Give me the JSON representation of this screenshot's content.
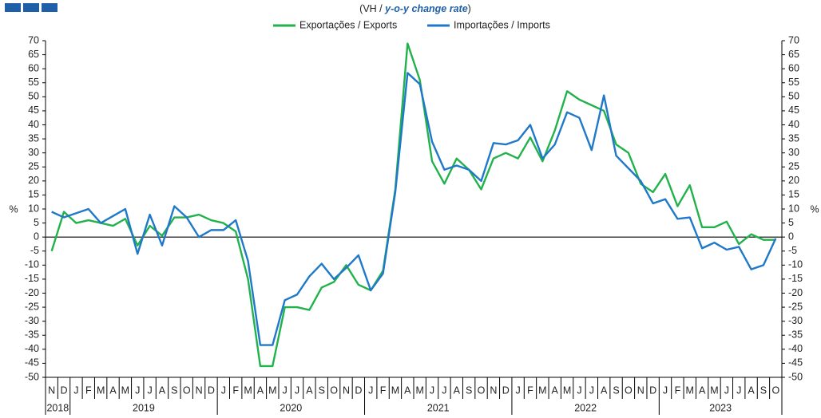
{
  "chart_data": {
    "type": "line",
    "title_prefix": "(VH /",
    "title": "y-o-y change rate",
    "title_suffix": ")",
    "ylabel": "%",
    "y2label": "%",
    "categories": [
      "N",
      "D",
      "J",
      "F",
      "M",
      "A",
      "M",
      "J",
      "J",
      "A",
      "S",
      "O",
      "N",
      "D",
      "J",
      "F",
      "M",
      "A",
      "M",
      "J",
      "J",
      "A",
      "S",
      "O",
      "N",
      "D",
      "J",
      "F",
      "M",
      "A",
      "M",
      "J",
      "J",
      "A",
      "S",
      "O",
      "N",
      "D",
      "J",
      "F",
      "M",
      "A",
      "M",
      "J",
      "J",
      "A",
      "S",
      "O",
      "N",
      "D",
      "J",
      "F",
      "M",
      "A",
      "M",
      "J",
      "J",
      "A",
      "S",
      "O"
    ],
    "years": [
      "2018",
      "2019",
      "2020",
      "2021",
      "2022",
      "2023"
    ],
    "series": [
      {
        "name": "Exportações / Exports",
        "color": "#22b24c",
        "values": [
          -5,
          9,
          5,
          6,
          5,
          4,
          6.5,
          -3,
          4,
          0.5,
          7,
          7,
          8,
          6,
          5,
          2,
          -15,
          -46,
          -46,
          -25,
          -25,
          -26,
          -18,
          -16,
          -10,
          -17,
          -19,
          -12,
          17,
          69,
          56,
          27,
          19,
          28,
          24,
          17,
          28,
          30,
          28,
          35.5,
          27,
          38,
          52,
          49,
          47,
          45,
          33,
          30,
          19,
          16,
          22.5,
          11,
          18.5,
          3.5,
          3.5,
          5.5,
          -2.5,
          1,
          -1,
          -1
        ]
      },
      {
        "name": "Importações / Imports",
        "color": "#1f78c8",
        "values": [
          9,
          7,
          8.5,
          10,
          5,
          7.5,
          10,
          -6,
          8,
          -3,
          11,
          7,
          0,
          2.5,
          2.5,
          6,
          -8.5,
          -38.5,
          -38.5,
          -22.5,
          -20.5,
          -14,
          -9.5,
          -15,
          -11,
          -6.5,
          -19,
          -13,
          16,
          58.5,
          54.5,
          34,
          24,
          25.5,
          24,
          20,
          33.5,
          33,
          34.5,
          40,
          28,
          33,
          44.5,
          42.5,
          31,
          50.5,
          29,
          24.5,
          20,
          12,
          13.5,
          6.5,
          7,
          -4,
          -2,
          -4.5,
          -3.5,
          -11.5,
          -10,
          -0.5
        ]
      }
    ],
    "ylim": [
      -50,
      70
    ],
    "yticks": [
      -50,
      -45,
      -40,
      -35,
      -30,
      -25,
      -20,
      -15,
      -10,
      -5,
      0,
      5,
      10,
      15,
      20,
      25,
      30,
      35,
      40,
      45,
      50,
      55,
      60,
      65,
      70
    ],
    "y2lim": [
      -50,
      70
    ],
    "y2ticks": [
      -50,
      -45,
      -40,
      -35,
      -30,
      -25,
      -20,
      -15,
      -10,
      -5,
      0,
      5,
      10,
      15,
      20,
      25,
      30,
      35,
      40,
      45,
      50,
      55,
      60,
      65,
      70
    ],
    "zero_line": true,
    "grid": false
  }
}
